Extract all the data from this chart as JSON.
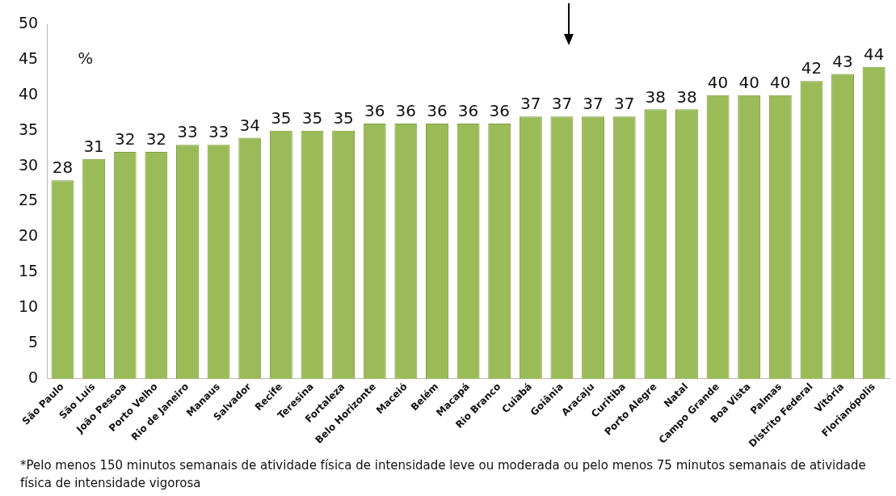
{
  "chart_data": {
    "type": "bar",
    "ylabel": "%",
    "categories": [
      "São Paulo",
      "São Luís",
      "João Pessoa",
      "Porto Velho",
      "Rio de Janeiro",
      "Manaus",
      "Salvador",
      "Recife",
      "Teresina",
      "Fortaleza",
      "Belo Horizonte",
      "Maceió",
      "Belém",
      "Macapá",
      "Rio Branco",
      "Cuiabá",
      "Goiânia",
      "Aracaju",
      "Curitiba",
      "Porto Alegre",
      "Natal",
      "Campo Grande",
      "Boa Vista",
      "Palmas",
      "Distrito Federal",
      "Vitória",
      "Florianópolis"
    ],
    "values": [
      28,
      31,
      32,
      32,
      33,
      33,
      34,
      35,
      35,
      35,
      36,
      36,
      36,
      36,
      36,
      37,
      37,
      37,
      37,
      38,
      38,
      40,
      40,
      40,
      42,
      43,
      44
    ],
    "color": "#9bbb59",
    "ylim": [
      0,
      50
    ],
    "yticks": [
      0,
      5,
      10,
      15,
      20,
      25,
      30,
      35,
      40,
      45,
      50
    ],
    "data_labels": true,
    "annotations": [
      "*Pelo menos 150 minutos semanais de atividade física de intensidade leve ou moderada ou pelo menos 75 minutos semanais de atividade física de intensidade vigorosa"
    ]
  }
}
